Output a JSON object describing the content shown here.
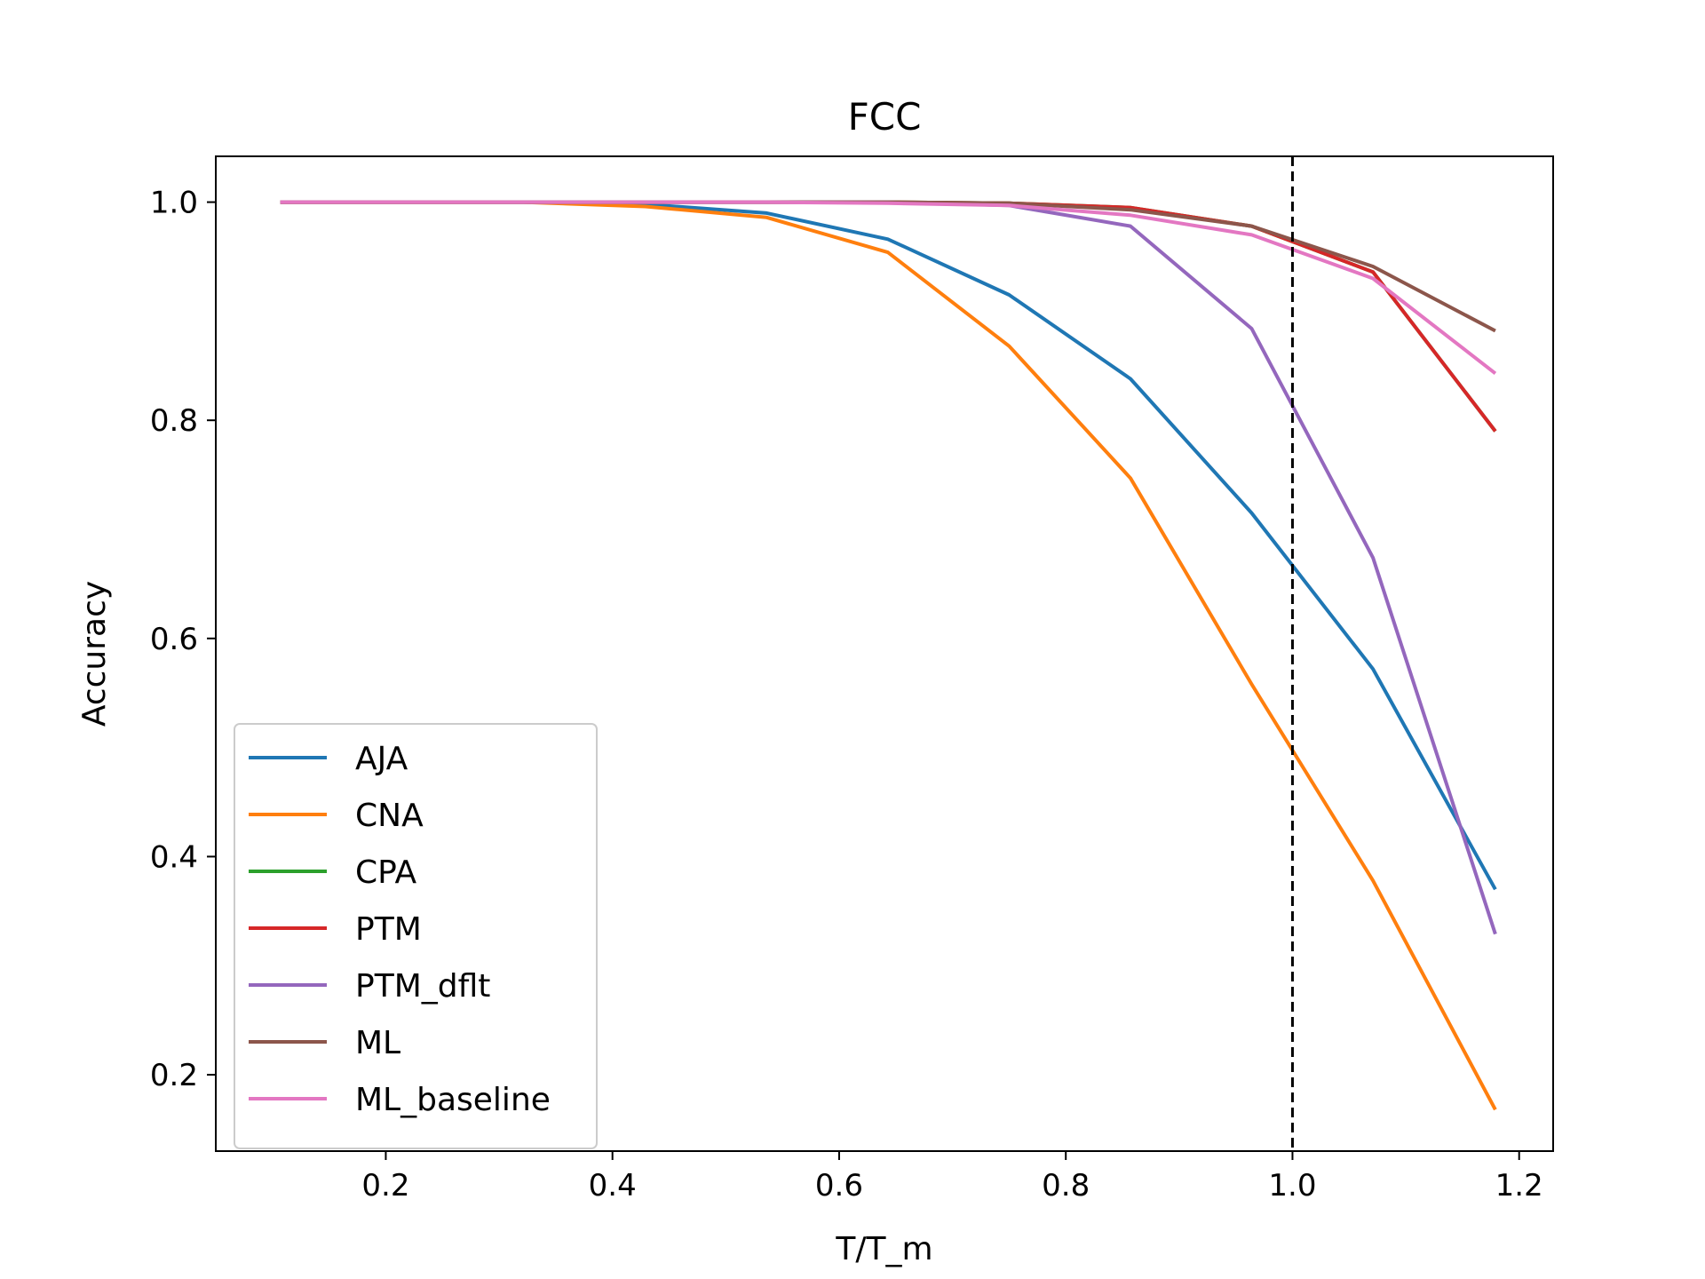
{
  "chart_data": {
    "type": "line",
    "title": "FCC",
    "xlabel": "T/T_m",
    "ylabel": "Accuracy",
    "xlim": [
      0.05,
      1.23
    ],
    "ylim": [
      0.13,
      1.042
    ],
    "xticks": [
      0.2,
      0.4,
      0.6,
      0.8,
      1.0,
      1.2
    ],
    "yticks": [
      0.2,
      0.4,
      0.6,
      0.8,
      1.0
    ],
    "xtick_labels": [
      "0.2",
      "0.4",
      "0.6",
      "0.8",
      "1.0",
      "1.2"
    ],
    "ytick_labels": [
      "0.2",
      "0.4",
      "0.6",
      "0.8",
      "1.0"
    ],
    "grid": false,
    "legend_position": "lower-left",
    "reference_line": {
      "x": 1.0,
      "style": "dashed",
      "color": "#000000"
    },
    "x": [
      0.107,
      0.214,
      0.321,
      0.429,
      0.536,
      0.643,
      0.75,
      0.857,
      0.964,
      1.071,
      1.179
    ],
    "series": [
      {
        "name": "AJA",
        "color": "#1f77b4",
        "values": [
          1.0,
          1.0,
          1.0,
          0.998,
          0.99,
          0.966,
          0.915,
          0.838,
          0.715,
          0.572,
          0.37
        ]
      },
      {
        "name": "CNA",
        "color": "#ff7f0e",
        "values": [
          1.0,
          1.0,
          1.0,
          0.996,
          0.986,
          0.954,
          0.868,
          0.747,
          0.558,
          0.378,
          0.168
        ]
      },
      {
        "name": "CPA",
        "color": "#2ca02c",
        "values": [
          1.0,
          1.0,
          1.0,
          1.0,
          1.0,
          1.0,
          0.999,
          0.995,
          0.978,
          0.936,
          0.79
        ]
      },
      {
        "name": "PTM",
        "color": "#d62728",
        "values": [
          1.0,
          1.0,
          1.0,
          1.0,
          1.0,
          1.0,
          0.999,
          0.995,
          0.978,
          0.936,
          0.79
        ]
      },
      {
        "name": "PTM_dflt",
        "color": "#9467bd",
        "values": [
          1.0,
          1.0,
          1.0,
          1.0,
          1.0,
          1.0,
          0.997,
          0.978,
          0.884,
          0.674,
          0.329
        ]
      },
      {
        "name": "ML",
        "color": "#8c564b",
        "values": [
          1.0,
          1.0,
          1.0,
          1.0,
          1.0,
          1.0,
          0.999,
          0.993,
          0.978,
          0.941,
          0.882
        ]
      },
      {
        "name": "ML_baseline",
        "color": "#e377c2",
        "values": [
          1.0,
          1.0,
          1.0,
          1.0,
          1.0,
          0.999,
          0.997,
          0.988,
          0.97,
          0.93,
          0.843
        ]
      }
    ]
  }
}
